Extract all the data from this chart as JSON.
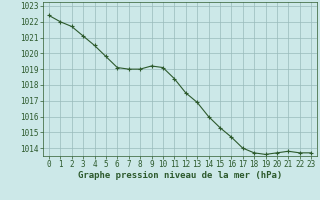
{
  "x": [
    0,
    1,
    2,
    3,
    4,
    5,
    6,
    7,
    8,
    9,
    10,
    11,
    12,
    13,
    14,
    15,
    16,
    17,
    18,
    19,
    20,
    21,
    22,
    23
  ],
  "y": [
    1022.4,
    1022.0,
    1021.7,
    1021.1,
    1020.5,
    1019.8,
    1019.1,
    1019.0,
    1019.0,
    1019.2,
    1019.1,
    1018.4,
    1017.5,
    1016.9,
    1016.0,
    1015.3,
    1014.7,
    1014.0,
    1013.7,
    1013.6,
    1013.7,
    1013.8,
    1013.7,
    1013.7
  ],
  "line_color": "#2d5a2d",
  "marker": "+",
  "marker_size": 3,
  "marker_linewidth": 0.8,
  "line_width": 0.8,
  "bg_color": "#cce8e8",
  "grid_color": "#99bbbb",
  "xlabel": "Graphe pression niveau de la mer (hPa)",
  "xlabel_color": "#2d5a2d",
  "tick_color": "#2d5a2d",
  "axis_color": "#2d5a2d",
  "ylim": [
    1013.5,
    1023.25
  ],
  "xlim": [
    -0.5,
    23.5
  ],
  "yticks": [
    1014,
    1015,
    1016,
    1017,
    1018,
    1019,
    1020,
    1021,
    1022,
    1023
  ],
  "xticks": [
    0,
    1,
    2,
    3,
    4,
    5,
    6,
    7,
    8,
    9,
    10,
    11,
    12,
    13,
    14,
    15,
    16,
    17,
    18,
    19,
    20,
    21,
    22,
    23
  ],
  "tick_fontsize": 5.5,
  "xlabel_fontsize": 6.5,
  "xlabel_fontweight": "bold"
}
